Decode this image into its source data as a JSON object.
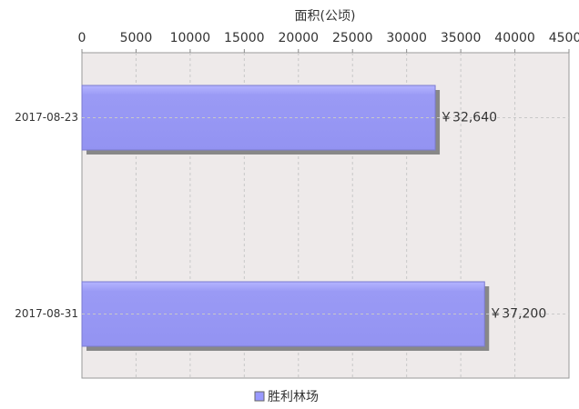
{
  "chart_data": {
    "type": "bar",
    "orientation": "horizontal",
    "x_label": "面积(公顷)",
    "categories": [
      "2017-08-23",
      "2017-08-31"
    ],
    "series": [
      {
        "name": "胜利林场",
        "color": "#9999ff",
        "values": [
          32640,
          37200
        ],
        "value_labels": [
          "￥32,640",
          "￥37,200"
        ]
      }
    ],
    "xlim": [
      0,
      45000
    ],
    "xticks": [
      0,
      5000,
      10000,
      15000,
      20000,
      25000,
      30000,
      35000,
      40000,
      45000
    ],
    "grid": true,
    "legend": "bottom"
  }
}
